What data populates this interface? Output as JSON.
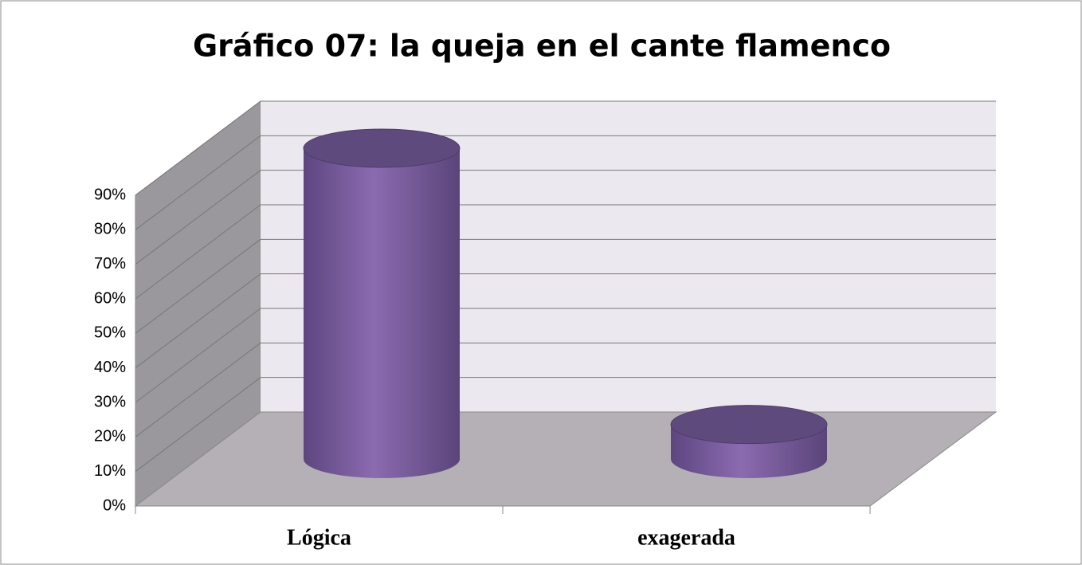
{
  "chart_data": {
    "type": "bar3d",
    "title": "Gráfico 07: la queja en el cante flamenco",
    "categories": [
      "Lógica",
      "exagerada"
    ],
    "values": [
      90,
      10
    ],
    "color": "#8064a2",
    "ylim": [
      0,
      90
    ],
    "yticks": [
      {
        "value": 0,
        "label": "0%"
      },
      {
        "value": 10,
        "label": "10%"
      },
      {
        "value": 20,
        "label": "20%"
      },
      {
        "value": 30,
        "label": "30%"
      },
      {
        "value": 40,
        "label": "40%"
      },
      {
        "value": 50,
        "label": "50%"
      },
      {
        "value": 60,
        "label": "60%"
      },
      {
        "value": 70,
        "label": "70%"
      },
      {
        "value": 80,
        "label": "80%"
      },
      {
        "value": 90,
        "label": "90%"
      }
    ],
    "grid": true
  }
}
